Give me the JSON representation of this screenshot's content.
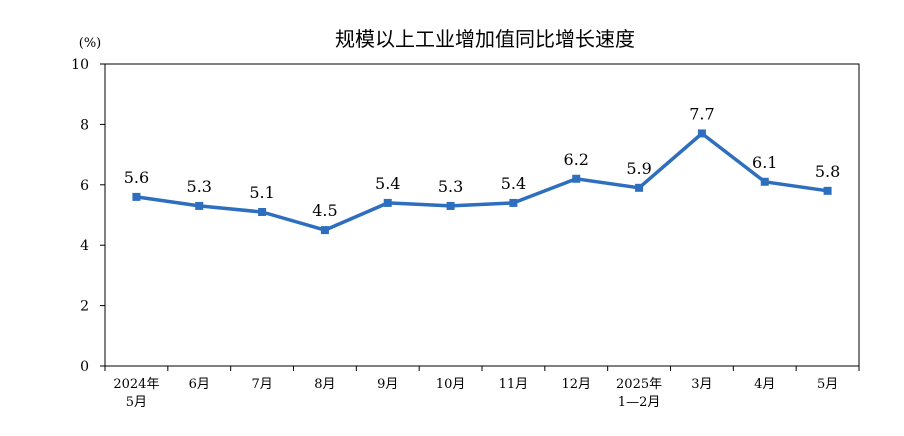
{
  "chart_data": {
    "type": "line",
    "title": "规模以上工业增加值同比增长速度",
    "unit": "(%)",
    "ylim": [
      0,
      10
    ],
    "yticks": [
      "0",
      "2",
      "4",
      "6",
      "8",
      "10"
    ],
    "categories": [
      [
        "2024年",
        "5月"
      ],
      [
        "6月"
      ],
      [
        "7月"
      ],
      [
        "8月"
      ],
      [
        "9月"
      ],
      [
        "10月"
      ],
      [
        "11月"
      ],
      [
        "12月"
      ],
      [
        "2025年",
        "1—2月"
      ],
      [
        "3月"
      ],
      [
        "4月"
      ],
      [
        "5月"
      ]
    ],
    "values": [
      5.6,
      5.3,
      5.1,
      4.5,
      5.4,
      5.3,
      5.4,
      6.2,
      5.9,
      7.7,
      6.1,
      5.8
    ],
    "labels": [
      "5.6",
      "5.3",
      "5.1",
      "4.5",
      "5.4",
      "5.3",
      "5.4",
      "6.2",
      "5.9",
      "7.7",
      "6.1",
      "5.8"
    ],
    "grid": false,
    "line_color": "#2E6EBE"
  }
}
